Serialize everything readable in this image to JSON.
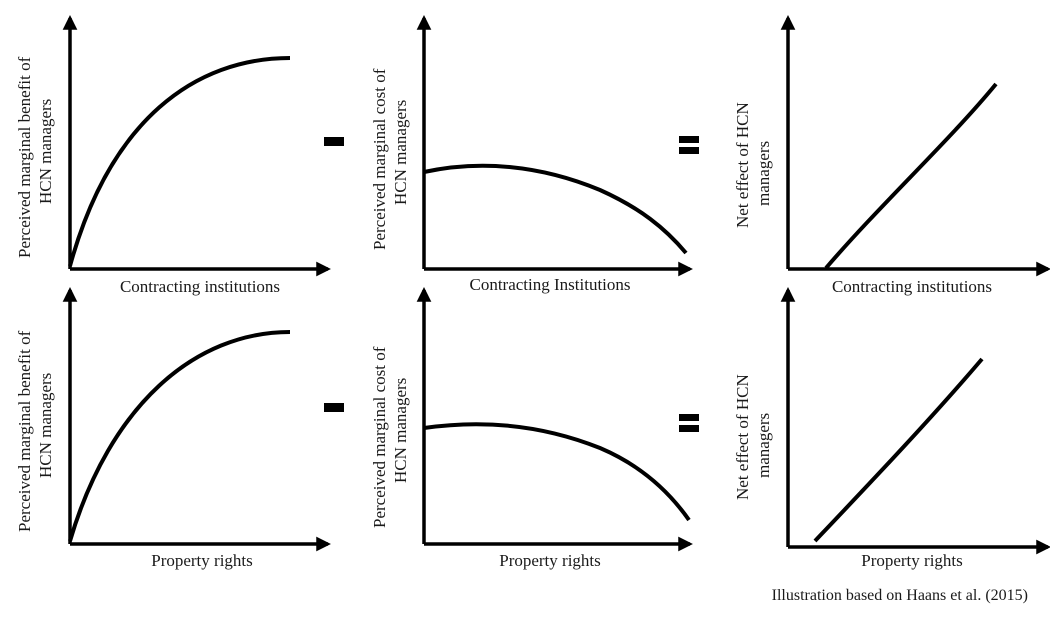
{
  "panels": [
    {
      "row": 0,
      "col": 0,
      "ylabel_lines": [
        "Perceived marginal benefit of",
        "HCN managers"
      ],
      "xlabel": "Contracting institutions",
      "curve": "concave-increasing"
    },
    {
      "row": 0,
      "col": 1,
      "ylabel_lines": [
        "Perceived marginal cost of",
        "HCN managers"
      ],
      "xlabel": "Contracting Institutions",
      "curve": "inverted-falling"
    },
    {
      "row": 0,
      "col": 2,
      "ylabel_lines": [
        "Net effect of HCN",
        "managers"
      ],
      "xlabel": "Contracting institutions",
      "curve": "convex-increasing"
    },
    {
      "row": 1,
      "col": 0,
      "ylabel_lines": [
        "Perceived marginal benefit of",
        "HCN managers"
      ],
      "xlabel": "Property rights",
      "curve": "concave-increasing"
    },
    {
      "row": 1,
      "col": 1,
      "ylabel_lines": [
        "Perceived marginal cost of",
        "HCN managers"
      ],
      "xlabel": "Property rights",
      "curve": "inverted-falling"
    },
    {
      "row": 1,
      "col": 2,
      "ylabel_lines": [
        "Net effect of HCN",
        "managers"
      ],
      "xlabel": "Property rights",
      "curve": "convex-increasing"
    }
  ],
  "operators": [
    {
      "row": 0,
      "symbol": "minus"
    },
    {
      "row": 0,
      "symbol": "equals"
    },
    {
      "row": 1,
      "symbol": "minus"
    },
    {
      "row": 1,
      "symbol": "equals"
    }
  ],
  "caption": "Illustration based on Haans et al. (2015)"
}
